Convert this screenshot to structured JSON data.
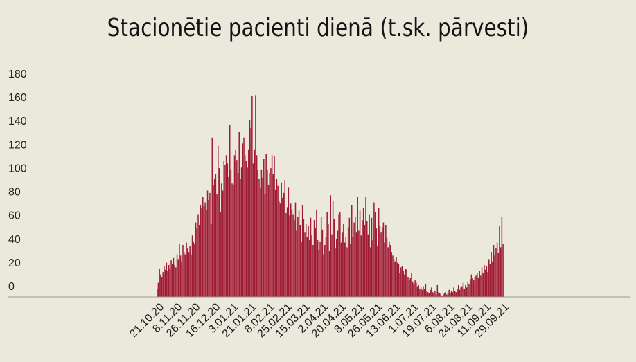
{
  "chart_data": {
    "type": "bar",
    "title": "Stacionētie pacienti dienā (t.sk. pārvesti)",
    "xlabel": "",
    "ylabel": "",
    "ylim": [
      0,
      180
    ],
    "y_ticks": [
      "0",
      "20",
      "40",
      "60",
      "80",
      "100",
      "120",
      "140",
      "160",
      "180"
    ],
    "x_tick_labels": [
      "21.10.20",
      "8.11.20",
      "26.11.20",
      "16.12.20",
      "3.01.21",
      "21.01.21",
      "8.02.21",
      "25.02.21",
      "15.03.21",
      "2.04.21",
      "20.04.21",
      "8.05.21",
      "26.05.21",
      "13.06.21",
      "1.07.21",
      "19.07.21",
      "6.08.21",
      "24.08.21",
      "11.09.21",
      "29.09.21"
    ],
    "x_start": "2020-10-21",
    "x_end": "2021-10-01",
    "bar_color": "#a01c35",
    "grid": false,
    "series": [
      {
        "values": [
          7,
          12,
          24,
          19,
          17,
          21,
          26,
          23,
          29,
          22,
          27,
          24,
          31,
          28,
          33,
          27,
          25,
          36,
          32,
          45,
          35,
          30,
          44,
          38,
          36,
          46,
          41,
          38,
          43,
          36,
          52,
          47,
          45,
          63,
          58,
          70,
          61,
          78,
          75,
          85,
          77,
          80,
          74,
          90,
          82,
          88,
          62,
          135,
          95,
          100,
          104,
          87,
          128,
          109,
          72,
          96,
          90,
          115,
          112,
          120,
          113,
          102,
          146,
          108,
          96,
          95,
          120,
          125,
          116,
          105,
          140,
          100,
          110,
          130,
          135,
          120,
          115,
          110,
          125,
          150,
          143,
          170,
          113,
          125,
          171,
          120,
          108,
          100,
          92,
          108,
          101,
          117,
          87,
          121,
          108,
          95,
          105,
          109,
          120,
          104,
          119,
          91,
          100,
          94,
          81,
          79,
          97,
          84,
          88,
          99,
          71,
          76,
          93,
          69,
          79,
          74,
          70,
          65,
          80,
          56,
          68,
          73,
          61,
          47,
          78,
          66,
          55,
          62,
          51,
          60,
          48,
          67,
          52,
          44,
          65,
          58,
          74,
          48,
          40,
          47,
          68,
          57,
          36,
          44,
          51,
          72,
          62,
          39,
          86,
          53,
          81,
          66,
          41,
          49,
          56,
          70,
          72,
          46,
          55,
          62,
          46,
          51,
          42,
          59,
          67,
          45,
          78,
          51,
          63,
          68,
          55,
          85,
          56,
          73,
          52,
          65,
          75,
          61,
          85,
          64,
          53,
          70,
          42,
          67,
          48,
          80,
          72,
          58,
          43,
          75,
          60,
          55,
          59,
          63,
          46,
          61,
          50,
          42,
          47,
          44,
          38,
          35,
          32,
          30,
          34,
          29,
          28,
          20,
          25,
          26,
          22,
          19,
          24,
          23,
          17,
          14,
          16,
          20,
          13,
          11,
          14,
          12,
          9,
          10,
          7,
          8,
          6,
          9,
          7,
          11,
          5,
          4,
          3,
          6,
          8,
          4,
          3,
          5,
          2,
          10,
          4,
          3,
          2,
          1,
          2,
          3,
          4,
          2,
          3,
          6,
          3,
          5,
          4,
          8,
          5,
          4,
          7,
          10,
          6,
          8,
          9,
          12,
          7,
          10,
          8,
          13,
          11,
          15,
          19,
          16,
          14,
          17,
          18,
          20,
          16,
          22,
          18,
          25,
          20,
          27,
          23,
          26,
          21,
          32,
          28,
          38,
          30,
          44,
          35,
          41,
          46,
          37,
          60,
          42,
          68,
          45
        ]
      }
    ]
  }
}
